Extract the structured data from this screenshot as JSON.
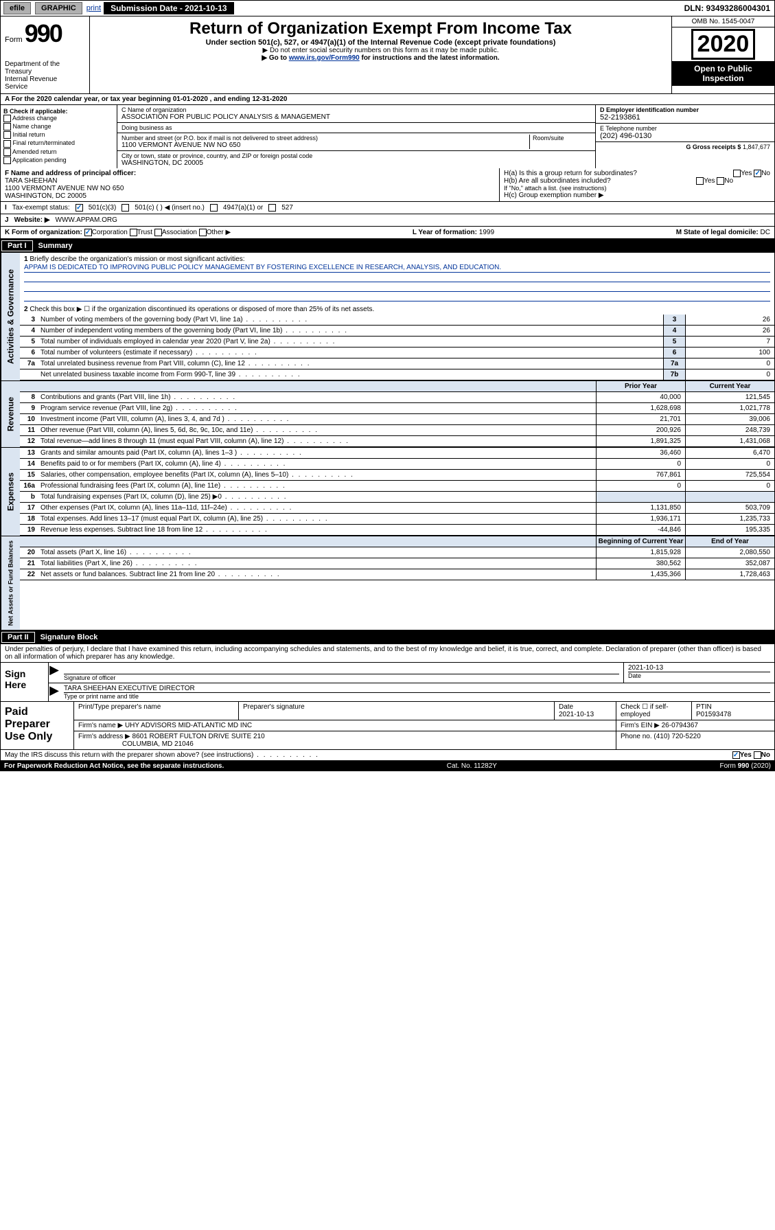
{
  "topbar": {
    "efile": "efile",
    "graphic": "GRAPHIC",
    "print": "print",
    "submission": "Submission Date - 2021-10-13",
    "dln": "DLN: 93493286004301"
  },
  "header": {
    "form_prefix": "Form",
    "form_number": "990",
    "dept": "Department of the Treasury\nInternal Revenue Service",
    "title": "Return of Organization Exempt From Income Tax",
    "sub1": "Under section 501(c), 527, or 4947(a)(1) of the Internal Revenue Code (except private foundations)",
    "sub2": "▶ Do not enter social security numbers on this form as it may be made public.",
    "sub3_pre": "▶ Go to ",
    "sub3_link": "www.irs.gov/Form990",
    "sub3_post": " for instructions and the latest information.",
    "omb": "OMB No. 1545-0047",
    "year": "2020",
    "open": "Open to Public Inspection"
  },
  "section_a": "A For the 2020 calendar year, or tax year beginning 01-01-2020   , and ending 12-31-2020",
  "col_b": {
    "header": "B Check if applicable:",
    "items": [
      "Address change",
      "Name change",
      "Initial return",
      "Final return/terminated",
      "Amended return",
      "Application pending"
    ]
  },
  "col_c": {
    "name_label": "C Name of organization",
    "name": "ASSOCIATION FOR PUBLIC POLICY ANALYSIS & MANAGEMENT",
    "dba_label": "Doing business as",
    "dba": "",
    "addr_label": "Number and street (or P.O. box if mail is not delivered to street address)",
    "room_label": "Room/suite",
    "addr": "1100 VERMONT AVENUE NW NO 650",
    "city_label": "City or town, state or province, country, and ZIP or foreign postal code",
    "city": "WASHINGTON, DC  20005"
  },
  "col_d": {
    "d_label": "D Employer identification number",
    "d_val": "52-2193861",
    "e_label": "E Telephone number",
    "e_val": "(202) 496-0130",
    "g_label": "G Gross receipts $",
    "g_val": "1,847,677"
  },
  "col_f": {
    "label": "F Name and address of principal officer:",
    "name": "TARA SHEEHAN",
    "addr1": "1100 VERMONT AVENUE NW NO 650",
    "addr2": "WASHINGTON, DC  20005"
  },
  "col_h": {
    "ha": "H(a)  Is this a group return for subordinates?",
    "hb": "H(b)  Are all subordinates included?",
    "hb_note": "If \"No,\" attach a list. (see instructions)",
    "hc": "H(c)  Group exemption number ▶",
    "yes": "Yes",
    "no": "No"
  },
  "status_row": {
    "i": "I",
    "label": "Tax-exempt status:",
    "c3": "501(c)(3)",
    "c_other": "501(c) (   ) ◀ (insert no.)",
    "a1": "4947(a)(1) or",
    "s527": "527"
  },
  "website_row": {
    "j": "J",
    "label": "Website: ▶",
    "val": "WWW.APPAM.ORG"
  },
  "korg": {
    "k": "K Form of organization:",
    "corp": "Corporation",
    "trust": "Trust",
    "assoc": "Association",
    "other": "Other ▶",
    "l": "L Year of formation:",
    "l_val": "1999",
    "m": "M State of legal domicile:",
    "m_val": "DC"
  },
  "part1": {
    "header_num": "Part I",
    "header_title": "Summary",
    "tab_gov": "Activities & Governance",
    "tab_rev": "Revenue",
    "tab_exp": "Expenses",
    "tab_net": "Net Assets or Fund Balances",
    "line1_label": "Briefly describe the organization's mission or most significant activities:",
    "mission": "APPAM IS DEDICATED TO IMPROVING PUBLIC POLICY MANAGEMENT BY FOSTERING EXCELLENCE IN RESEARCH, ANALYSIS, AND EDUCATION.",
    "line2": "Check this box ▶ ☐  if the organization discontinued its operations or disposed of more than 25% of its net assets.",
    "lines_gov": [
      {
        "n": "3",
        "t": "Number of voting members of the governing body (Part VI, line 1a)",
        "box": "3",
        "v": "26"
      },
      {
        "n": "4",
        "t": "Number of independent voting members of the governing body (Part VI, line 1b)",
        "box": "4",
        "v": "26"
      },
      {
        "n": "5",
        "t": "Total number of individuals employed in calendar year 2020 (Part V, line 2a)",
        "box": "5",
        "v": "7"
      },
      {
        "n": "6",
        "t": "Total number of volunteers (estimate if necessary)",
        "box": "6",
        "v": "100"
      },
      {
        "n": "7a",
        "t": "Total unrelated business revenue from Part VIII, column (C), line 12",
        "box": "7a",
        "v": "0"
      },
      {
        "n": "",
        "t": "Net unrelated business taxable income from Form 990-T, line 39",
        "box": "7b",
        "v": "0"
      }
    ],
    "col_prior": "Prior Year",
    "col_current": "Current Year",
    "lines_rev": [
      {
        "n": "8",
        "t": "Contributions and grants (Part VIII, line 1h)",
        "p": "40,000",
        "c": "121,545"
      },
      {
        "n": "9",
        "t": "Program service revenue (Part VIII, line 2g)",
        "p": "1,628,698",
        "c": "1,021,778"
      },
      {
        "n": "10",
        "t": "Investment income (Part VIII, column (A), lines 3, 4, and 7d )",
        "p": "21,701",
        "c": "39,006"
      },
      {
        "n": "11",
        "t": "Other revenue (Part VIII, column (A), lines 5, 6d, 8c, 9c, 10c, and 11e)",
        "p": "200,926",
        "c": "248,739"
      },
      {
        "n": "12",
        "t": "Total revenue—add lines 8 through 11 (must equal Part VIII, column (A), line 12)",
        "p": "1,891,325",
        "c": "1,431,068"
      }
    ],
    "lines_exp": [
      {
        "n": "13",
        "t": "Grants and similar amounts paid (Part IX, column (A), lines 1–3 )",
        "p": "36,460",
        "c": "6,470"
      },
      {
        "n": "14",
        "t": "Benefits paid to or for members (Part IX, column (A), line 4)",
        "p": "0",
        "c": "0"
      },
      {
        "n": "15",
        "t": "Salaries, other compensation, employee benefits (Part IX, column (A), lines 5–10)",
        "p": "767,861",
        "c": "725,554"
      },
      {
        "n": "16a",
        "t": "Professional fundraising fees (Part IX, column (A), line 11e)",
        "p": "0",
        "c": "0"
      },
      {
        "n": "b",
        "t": "Total fundraising expenses (Part IX, column (D), line 25) ▶0",
        "p": "",
        "c": "",
        "shaded": true
      },
      {
        "n": "17",
        "t": "Other expenses (Part IX, column (A), lines 11a–11d, 11f–24e)",
        "p": "1,131,850",
        "c": "503,709"
      },
      {
        "n": "18",
        "t": "Total expenses. Add lines 13–17 (must equal Part IX, column (A), line 25)",
        "p": "1,936,171",
        "c": "1,235,733"
      },
      {
        "n": "19",
        "t": "Revenue less expenses. Subtract line 18 from line 12",
        "p": "-44,846",
        "c": "195,335"
      }
    ],
    "col_begin": "Beginning of Current Year",
    "col_end": "End of Year",
    "lines_net": [
      {
        "n": "20",
        "t": "Total assets (Part X, line 16)",
        "p": "1,815,928",
        "c": "2,080,550"
      },
      {
        "n": "21",
        "t": "Total liabilities (Part X, line 26)",
        "p": "380,562",
        "c": "352,087"
      },
      {
        "n": "22",
        "t": "Net assets or fund balances. Subtract line 21 from line 20",
        "p": "1,435,366",
        "c": "1,728,463"
      }
    ]
  },
  "part2": {
    "header_num": "Part II",
    "header_title": "Signature Block",
    "perjury": "Under penalties of perjury, I declare that I have examined this return, including accompanying schedules and statements, and to the best of my knowledge and belief, it is true, correct, and complete. Declaration of preparer (other than officer) is based on all information of which preparer has any knowledge.",
    "sign_here": "Sign Here",
    "sig_officer": "Signature of officer",
    "sig_date": "2021-10-13",
    "date_label": "Date",
    "officer_name": "TARA SHEEHAN  EXECUTIVE DIRECTOR",
    "name_label": "Type or print name and title"
  },
  "preparer": {
    "label": "Paid Preparer Use Only",
    "h_name": "Print/Type preparer's name",
    "h_sig": "Preparer's signature",
    "h_date": "Date",
    "date_val": "2021-10-13",
    "h_check": "Check ☐ if self-employed",
    "h_ptin": "PTIN",
    "ptin_val": "P01593478",
    "firm_name_l": "Firm's name    ▶",
    "firm_name": "UHY ADVISORS MID-ATLANTIC MD INC",
    "firm_ein_l": "Firm's EIN ▶",
    "firm_ein": "26-0794367",
    "firm_addr_l": "Firm's address ▶",
    "firm_addr1": "8601 ROBERT FULTON DRIVE SUITE 210",
    "firm_addr2": "COLUMBIA, MD  21046",
    "phone_l": "Phone no.",
    "phone": "(410) 720-5220"
  },
  "footer": {
    "discuss": "May the IRS discuss this return with the preparer shown above? (see instructions)",
    "yes": "Yes",
    "no": "No",
    "paperwork": "For Paperwork Reduction Act Notice, see the separate instructions.",
    "cat": "Cat. No. 11282Y",
    "form": "Form 990 (2020)"
  }
}
